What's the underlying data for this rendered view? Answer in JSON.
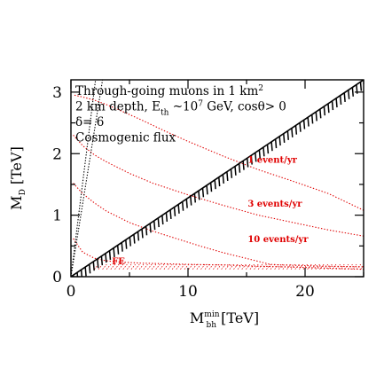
{
  "chart_data": {
    "type": "line",
    "title": "",
    "xlabel": {
      "main": "M",
      "sup": "min",
      "sub": "bh",
      "unit": " [TeV]"
    },
    "ylabel": {
      "main": "M",
      "sub": "D",
      "unit": " [TeV]"
    },
    "xlim": [
      0,
      25
    ],
    "ylim": [
      0,
      3.2
    ],
    "xticks": [
      0,
      10,
      20
    ],
    "yticks": [
      0,
      1,
      2,
      3
    ],
    "xticks_minor": [
      5,
      15,
      25
    ],
    "yticks_minor": [
      0.5,
      1.5,
      2.5
    ],
    "grid": false,
    "annotations": [
      {
        "id": "line1",
        "runs": [
          {
            "t": "Through-going muons in 1 km"
          },
          {
            "t": "2",
            "sup": true
          }
        ]
      },
      {
        "id": "line2",
        "runs": [
          {
            "t": "2 km depth, E"
          },
          {
            "t": "th",
            "sub": true
          },
          {
            "t": " ~10"
          },
          {
            "t": "7",
            "sup": true
          },
          {
            "t": " GeV, cosθ> 0"
          }
        ]
      },
      {
        "id": "line3",
        "runs": [
          {
            "t": "δ= 6"
          }
        ]
      },
      {
        "id": "line4",
        "runs": [
          {
            "t": "Cosmogenic flux"
          }
        ]
      }
    ],
    "series": [
      {
        "name": "1 event/yr",
        "color": "#e00000",
        "x": [
          0.3,
          1,
          2,
          3,
          4,
          6,
          8,
          10,
          13,
          16,
          19,
          22,
          25
        ],
        "y": [
          2.95,
          2.92,
          2.87,
          2.8,
          2.72,
          2.55,
          2.37,
          2.2,
          1.96,
          1.74,
          1.55,
          1.35,
          1.08
        ]
      },
      {
        "name": "3 events/yr",
        "color": "#e00000",
        "x": [
          0.2,
          1,
          2,
          3,
          5,
          7,
          10,
          13,
          16,
          19,
          22,
          25
        ],
        "y": [
          2.3,
          2.13,
          1.98,
          1.87,
          1.68,
          1.52,
          1.33,
          1.16,
          1.0,
          0.88,
          0.76,
          0.66
        ]
      },
      {
        "name": "10 events/yr",
        "color": "#e00000",
        "x": [
          0.2,
          1,
          2,
          3,
          5,
          7,
          9,
          11,
          13,
          14.5,
          16,
          17,
          18,
          20,
          22,
          25
        ],
        "y": [
          1.52,
          1.35,
          1.2,
          1.07,
          0.88,
          0.74,
          0.62,
          0.5,
          0.39,
          0.32,
          0.25,
          0.2,
          0.19,
          0.18,
          0.17,
          0.16
        ]
      },
      {
        "name": "FE",
        "color": "#e00000",
        "x": [
          0.2,
          1,
          2,
          3,
          4,
          6,
          8,
          10,
          13,
          16,
          20,
          25
        ],
        "y": [
          0.62,
          0.4,
          0.3,
          0.26,
          0.24,
          0.22,
          0.21,
          0.2,
          0.19,
          0.17,
          0.15,
          0.12
        ]
      }
    ],
    "curve_labels": [
      {
        "text": "1 event/yr",
        "x": 15.1,
        "y": 1.85
      },
      {
        "text": "3 events/yr",
        "x": 15.1,
        "y": 1.14
      },
      {
        "text": "10 events/yr",
        "x": 15.1,
        "y": 0.56
      },
      {
        "text": "FE",
        "x": 3.5,
        "y": 0.2
      }
    ],
    "boundary_line": {
      "x": [
        0,
        25
      ],
      "y": [
        0,
        3.2
      ],
      "color": "#000000",
      "style": "hatched"
    },
    "dotted_boundary": {
      "x": [
        [
          0,
          2.1
        ],
        [
          0,
          2.7
        ]
      ],
      "y": [
        [
          0,
          3.2
        ],
        [
          0,
          3.2
        ]
      ],
      "color": "#000000"
    },
    "fe_band": {
      "x_start": 2,
      "x_end": 25,
      "y_low": 0.12,
      "y_high": 0.2,
      "color": "#e00000"
    }
  }
}
